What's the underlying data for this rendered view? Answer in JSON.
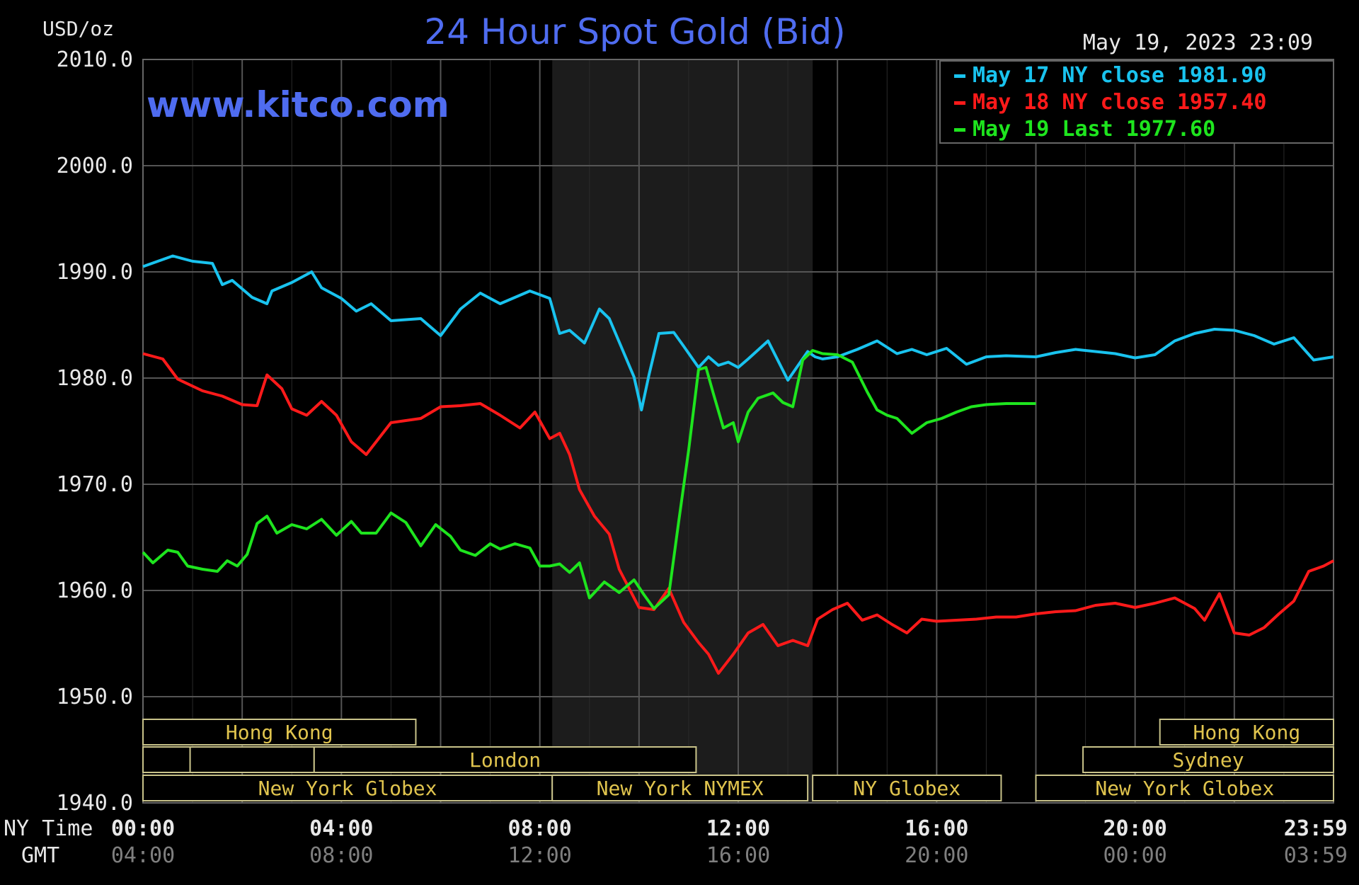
{
  "chart_data": {
    "type": "line",
    "title": "24 Hour Spot Gold (Bid)",
    "watermark": "www.kitco.com",
    "timestamp": "May 19, 2023 23:09",
    "ylabel": "USD/oz",
    "ylim": [
      1940,
      2010
    ],
    "yticks": [
      "2010.0",
      "2000.0",
      "1990.0",
      "1980.0",
      "1970.0",
      "1960.0",
      "1950.0",
      "1940.0"
    ],
    "ytick_values": [
      2010,
      2000,
      1990,
      1980,
      1970,
      1960,
      1950,
      1940
    ],
    "xlim": [
      0,
      24
    ],
    "x_row_labels": {
      "ny": "NY Time",
      "gmt": "GMT"
    },
    "xticks_ny": [
      "00:00",
      "04:00",
      "08:00",
      "12:00",
      "16:00",
      "20:00",
      "23:59"
    ],
    "xticks_gmt": [
      "04:00",
      "08:00",
      "12:00",
      "16:00",
      "20:00",
      "00:00",
      "03:59"
    ],
    "xtick_hours": [
      0,
      4,
      8,
      12,
      16,
      20,
      24
    ],
    "grid": true,
    "shaded_region": {
      "label": "New York NYMEX",
      "start_hour": 8.25,
      "end_hour": 13.5
    },
    "legend_position": "top-right",
    "legend": [
      {
        "text": "May 17 NY close 1981.90",
        "color": "#19c3ef"
      },
      {
        "text": "May 18 NY close 1957.40",
        "color": "#ff1a1a"
      },
      {
        "text": "May 19 Last 1977.60",
        "color": "#1ee51e"
      }
    ],
    "market_sessions": [
      {
        "label": "Hong Kong",
        "row": 0,
        "start": 0,
        "end": 5.5
      },
      {
        "label": "Hong Kong",
        "row": 0,
        "start": 20.5,
        "end": 24
      },
      {
        "label": "",
        "row": 1,
        "start": 0,
        "end": 0.95
      },
      {
        "label": "",
        "row": 1,
        "start": 0.95,
        "end": 3.45
      },
      {
        "label": "London",
        "row": 1,
        "start": 3.45,
        "end": 11.15
      },
      {
        "label": "Sydney",
        "row": 1,
        "start": 18.95,
        "end": 24
      },
      {
        "label": "",
        "row": 2,
        "start": 0,
        "end": 6
      },
      {
        "label": "New York Globex",
        "row": 2,
        "start": 0,
        "end": 8.25
      },
      {
        "label": "New York NYMEX",
        "row": 2,
        "start": 8.25,
        "end": 13.4
      },
      {
        "label": "NY Globex",
        "row": 2,
        "start": 13.5,
        "end": 17.3
      },
      {
        "label": "New York Globex",
        "row": 2,
        "start": 18,
        "end": 24
      }
    ],
    "series": [
      {
        "name": "May 17",
        "color": "#19c3ef",
        "x": [
          0,
          0.3,
          0.6,
          1,
          1.4,
          1.6,
          1.8,
          2.2,
          2.5,
          2.6,
          3,
          3.4,
          3.6,
          4,
          4.3,
          4.6,
          5,
          5.3,
          5.6,
          6,
          6.4,
          6.8,
          7.2,
          7.6,
          7.8,
          8.2,
          8.4,
          8.6,
          8.9,
          9.2,
          9.4,
          9.6,
          9.9,
          10.05,
          10.2,
          10.4,
          10.7,
          10.9,
          11.2,
          11.4,
          11.6,
          11.8,
          12,
          12.2,
          12.6,
          13,
          13.4,
          13.55,
          13.7,
          14,
          14.4,
          14.8,
          15.2,
          15.5,
          15.8,
          16.2,
          16.6,
          17,
          17.4,
          18,
          18.4,
          18.8,
          19.2,
          19.6,
          20,
          20.4,
          20.8,
          21.2,
          21.6,
          22,
          22.4,
          22.8,
          23.2,
          23.6,
          24
        ],
        "values": [
          1990.5,
          1991,
          1991.5,
          1991,
          1990.8,
          1988.8,
          1989.2,
          1987.6,
          1987,
          1988.2,
          1989,
          1990,
          1988.5,
          1987.5,
          1986.3,
          1987,
          1985.4,
          1985.5,
          1985.6,
          1984,
          1986.5,
          1988,
          1987,
          1987.8,
          1988.2,
          1987.5,
          1984.2,
          1984.5,
          1983.3,
          1986.5,
          1985.6,
          1983.4,
          1980.1,
          1977,
          1980.3,
          1984.2,
          1984.3,
          1983,
          1981,
          1982,
          1981.2,
          1981.5,
          1981,
          1981.8,
          1983.5,
          1979.8,
          1982.5,
          1982,
          1981.8,
          1982,
          1982.7,
          1983.5,
          1982.3,
          1982.7,
          1982.2,
          1982.8,
          1981.3,
          1982,
          1982.1,
          1982,
          1982.4,
          1982.7,
          1982.5,
          1982.3,
          1981.9,
          1982.2,
          1983.5,
          1984.2,
          1984.6,
          1984.5,
          1984,
          1983.2,
          1983.8,
          1981.7,
          1982
        ]
      },
      {
        "name": "May 18",
        "color": "#ff1a1a",
        "x": [
          0,
          0.4,
          0.7,
          1.2,
          1.6,
          2,
          2.3,
          2.5,
          2.8,
          3,
          3.3,
          3.6,
          3.9,
          4.2,
          4.5,
          4.7,
          5,
          5.3,
          5.6,
          6,
          6.4,
          6.8,
          7.2,
          7.6,
          7.9,
          8.2,
          8.4,
          8.6,
          8.8,
          9.1,
          9.4,
          9.6,
          9.8,
          10,
          10.3,
          10.6,
          10.9,
          11.2,
          11.4,
          11.6,
          11.9,
          12.2,
          12.5,
          12.8,
          13.1,
          13.4,
          13.6,
          13.9,
          14.2,
          14.5,
          14.8,
          15.1,
          15.4,
          15.7,
          16,
          16.4,
          16.8,
          17.2,
          17.6,
          18,
          18.4,
          18.8,
          19.2,
          19.6,
          20,
          20.4,
          20.8,
          21.2,
          21.4,
          21.7,
          22,
          22.3,
          22.6,
          22.9,
          23.2,
          23.5,
          23.8,
          24
        ],
        "values": [
          1982.3,
          1981.8,
          1979.9,
          1978.8,
          1978.3,
          1977.5,
          1977.4,
          1980.3,
          1979,
          1977.1,
          1976.5,
          1977.8,
          1976.5,
          1974,
          1972.8,
          1974,
          1975.8,
          1976,
          1976.2,
          1977.3,
          1977.4,
          1977.6,
          1976.5,
          1975.3,
          1976.8,
          1974.3,
          1974.8,
          1972.8,
          1969.5,
          1967,
          1965.3,
          1962,
          1960.2,
          1958.4,
          1958.2,
          1960.2,
          1957,
          1955.1,
          1954,
          1952.2,
          1954,
          1956,
          1956.8,
          1954.8,
          1955.3,
          1954.8,
          1957.3,
          1958.2,
          1958.8,
          1957.2,
          1957.7,
          1956.8,
          1956,
          1957.3,
          1957.1,
          1957.2,
          1957.3,
          1957.5,
          1957.5,
          1957.8,
          1958,
          1958.1,
          1958.6,
          1958.8,
          1958.4,
          1958.8,
          1959.3,
          1958.3,
          1957.2,
          1959.7,
          1956,
          1955.8,
          1956.5,
          1957.8,
          1959,
          1961.8,
          1962.3,
          1962.8
        ]
      },
      {
        "name": "May 19",
        "color": "#1ee51e",
        "x": [
          0,
          0.2,
          0.5,
          0.7,
          0.9,
          1.2,
          1.5,
          1.7,
          1.9,
          2.1,
          2.3,
          2.5,
          2.7,
          3,
          3.3,
          3.6,
          3.9,
          4.2,
          4.4,
          4.7,
          5,
          5.3,
          5.6,
          5.9,
          6.2,
          6.4,
          6.7,
          7,
          7.2,
          7.5,
          7.8,
          8,
          8.2,
          8.4,
          8.6,
          8.8,
          9,
          9.3,
          9.6,
          9.9,
          10.1,
          10.3,
          10.6,
          10.8,
          11,
          11.2,
          11.35,
          11.5,
          11.7,
          11.9,
          12,
          12.2,
          12.4,
          12.7,
          12.9,
          13.1,
          13.3,
          13.5,
          13.7,
          14,
          14.3,
          14.6,
          14.8,
          15,
          15.2,
          15.5,
          15.8,
          16.1,
          16.4,
          16.7,
          17,
          17.4,
          17.8,
          18
        ],
        "values": [
          1963.6,
          1962.6,
          1963.8,
          1963.6,
          1962.3,
          1962,
          1961.8,
          1962.8,
          1962.3,
          1963.4,
          1966.3,
          1967,
          1965.4,
          1966.2,
          1965.8,
          1966.7,
          1965.2,
          1966.5,
          1965.4,
          1965.4,
          1967.3,
          1966.4,
          1964.2,
          1966.2,
          1965.1,
          1963.8,
          1963.3,
          1964.4,
          1963.9,
          1964.4,
          1964,
          1962.3,
          1962.3,
          1962.5,
          1961.7,
          1962.6,
          1959.3,
          1960.8,
          1959.8,
          1961,
          1959.6,
          1958.3,
          1959.6,
          1966.5,
          1973.2,
          1980.8,
          1981,
          1978.5,
          1975.3,
          1975.8,
          1974,
          1976.8,
          1978.1,
          1978.6,
          1977.7,
          1977.3,
          1981.7,
          1982.6,
          1982.3,
          1982.2,
          1981.5,
          1978.7,
          1977,
          1976.5,
          1976.2,
          1974.8,
          1975.8,
          1976.2,
          1976.8,
          1977.3,
          1977.5,
          1977.6,
          1977.6,
          1977.6
        ]
      }
    ]
  }
}
